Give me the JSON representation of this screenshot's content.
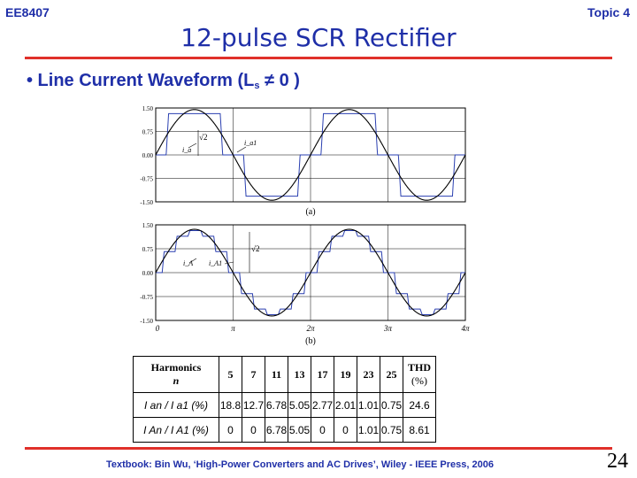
{
  "header": {
    "course": "EE8407",
    "topic": "Topic 4",
    "title": "12-pulse SCR Rectifier"
  },
  "bullet": {
    "prefix": "• Line Current Waveform (L",
    "subscript": "s",
    "suffix": " ≠ 0 )"
  },
  "chart_data": [
    {
      "type": "line",
      "caption": "(a)",
      "ylim": [
        -1.5,
        1.5
      ],
      "yticks": [
        "1.50",
        "0.75",
        "0.00",
        "-0.75",
        "-1.50"
      ],
      "x_range_rad": [
        0,
        12.566
      ],
      "grid": true,
      "series": [
        {
          "name": "i_a",
          "shape": "quasi-square (120° conduction) with commutation slope",
          "amplitude": 1.32
        },
        {
          "name": "i_a1",
          "shape": "sinusoid (fundamental)",
          "amplitude": 1.45
        }
      ],
      "annotations": [
        "i_a",
        "i_a1",
        "√2"
      ]
    },
    {
      "type": "line",
      "caption": "(b)",
      "ylim": [
        -1.5,
        1.5
      ],
      "yticks": [
        "1.50",
        "0.75",
        "0.00",
        "-0.75",
        "-1.50"
      ],
      "x_range_rad": [
        0,
        12.566
      ],
      "xticks": [
        "0",
        "π",
        "2π",
        "3π",
        "4π"
      ],
      "grid": true,
      "series": [
        {
          "name": "i_A",
          "shape": "12-pulse stepped waveform",
          "amplitude": 1.32
        },
        {
          "name": "i_A1",
          "shape": "sinusoid (fundamental)",
          "amplitude": 1.36
        }
      ],
      "annotations": [
        "i_A",
        "i_A1",
        "√2"
      ]
    }
  ],
  "table": {
    "header_label_line1": "Harmonics",
    "header_label_line2": "n",
    "harmonics": [
      "5",
      "7",
      "11",
      "13",
      "17",
      "19",
      "23",
      "25"
    ],
    "thd_line1": "THD",
    "thd_line2": "(%)",
    "rows": [
      {
        "label": "I an / I a1   (%)",
        "values": [
          "18.8",
          "12.7",
          "6.78",
          "5.05",
          "2.77",
          "2.01",
          "1.01",
          "0.75"
        ],
        "thd": "24.6"
      },
      {
        "label": "I An / I A1  (%)",
        "values": [
          "0",
          "0",
          "6.78",
          "5.05",
          "0",
          "0",
          "1.01",
          "0.75"
        ],
        "thd": "8.61"
      }
    ]
  },
  "footer": "Textbook: Bin Wu, ‘High-Power Converters and AC Drives’, Wiley - IEEE Press, 2006",
  "page_number": "24"
}
